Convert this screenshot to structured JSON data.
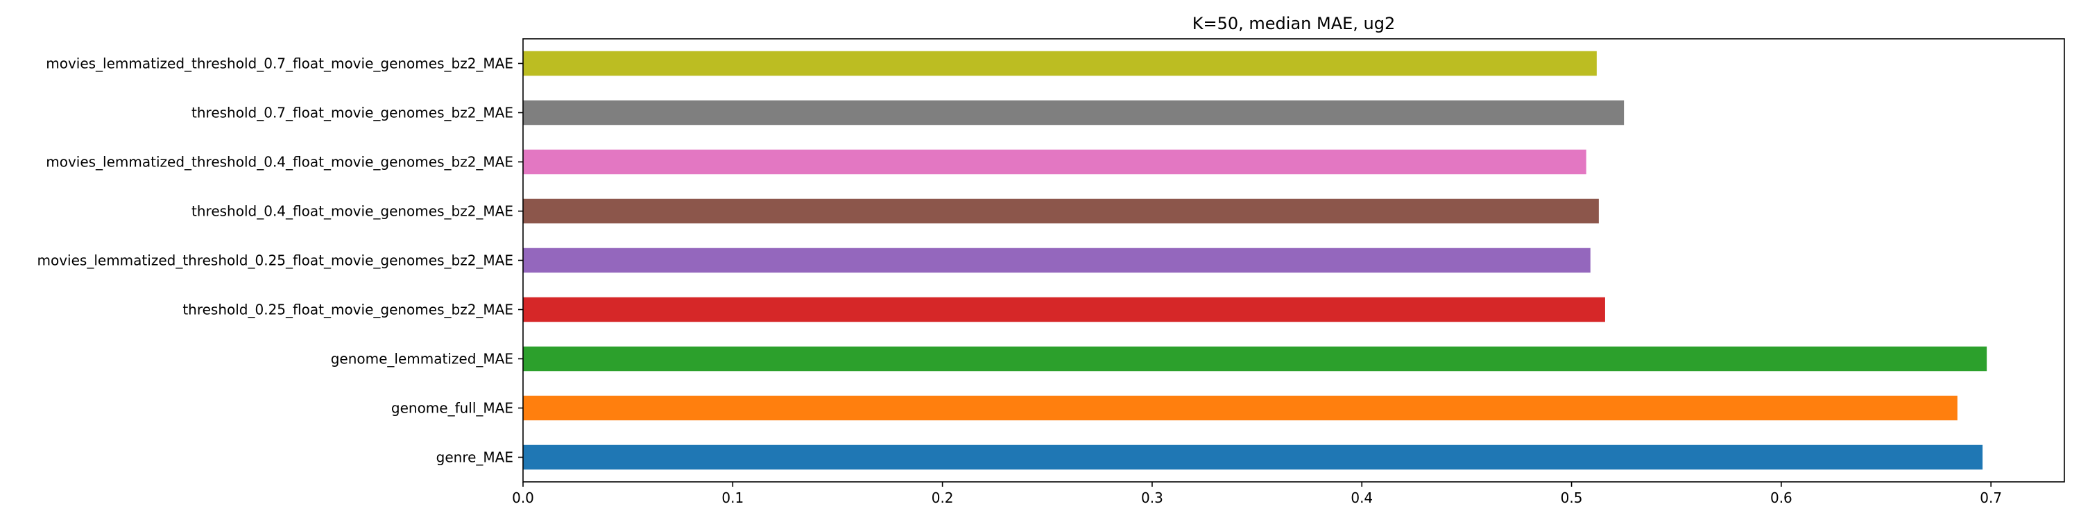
{
  "chart_data": {
    "type": "bar",
    "orientation": "horizontal",
    "title": "K=50, median MAE, ug2",
    "xlabel": "",
    "ylabel": "",
    "xlim": [
      0,
      0.735
    ],
    "grid": false,
    "legend": "none",
    "xticks": [
      0.0,
      0.1,
      0.2,
      0.3,
      0.4,
      0.5,
      0.6,
      0.7
    ],
    "xtick_labels": [
      "0.0",
      "0.1",
      "0.2",
      "0.3",
      "0.4",
      "0.5",
      "0.6",
      "0.7"
    ],
    "categories": [
      "genre_MAE",
      "genome_full_MAE",
      "genome_lemmatized_MAE",
      "threshold_0.25_float_movie_genomes_bz2_MAE",
      "movies_lemmatized_threshold_0.25_float_movie_genomes_bz2_MAE",
      "threshold_0.4_float_movie_genomes_bz2_MAE",
      "movies_lemmatized_threshold_0.4_float_movie_genomes_bz2_MAE",
      "threshold_0.7_float_movie_genomes_bz2_MAE",
      "movies_lemmatized_threshold_0.7_float_movie_genomes_bz2_MAE"
    ],
    "values": [
      0.696,
      0.684,
      0.698,
      0.516,
      0.509,
      0.513,
      0.507,
      0.525,
      0.512
    ],
    "colors": [
      "#1f77b4",
      "#ff7f0e",
      "#2ca02c",
      "#d62728",
      "#9467bd",
      "#8c564b",
      "#e377c2",
      "#7f7f7f",
      "#bcbd22"
    ]
  }
}
